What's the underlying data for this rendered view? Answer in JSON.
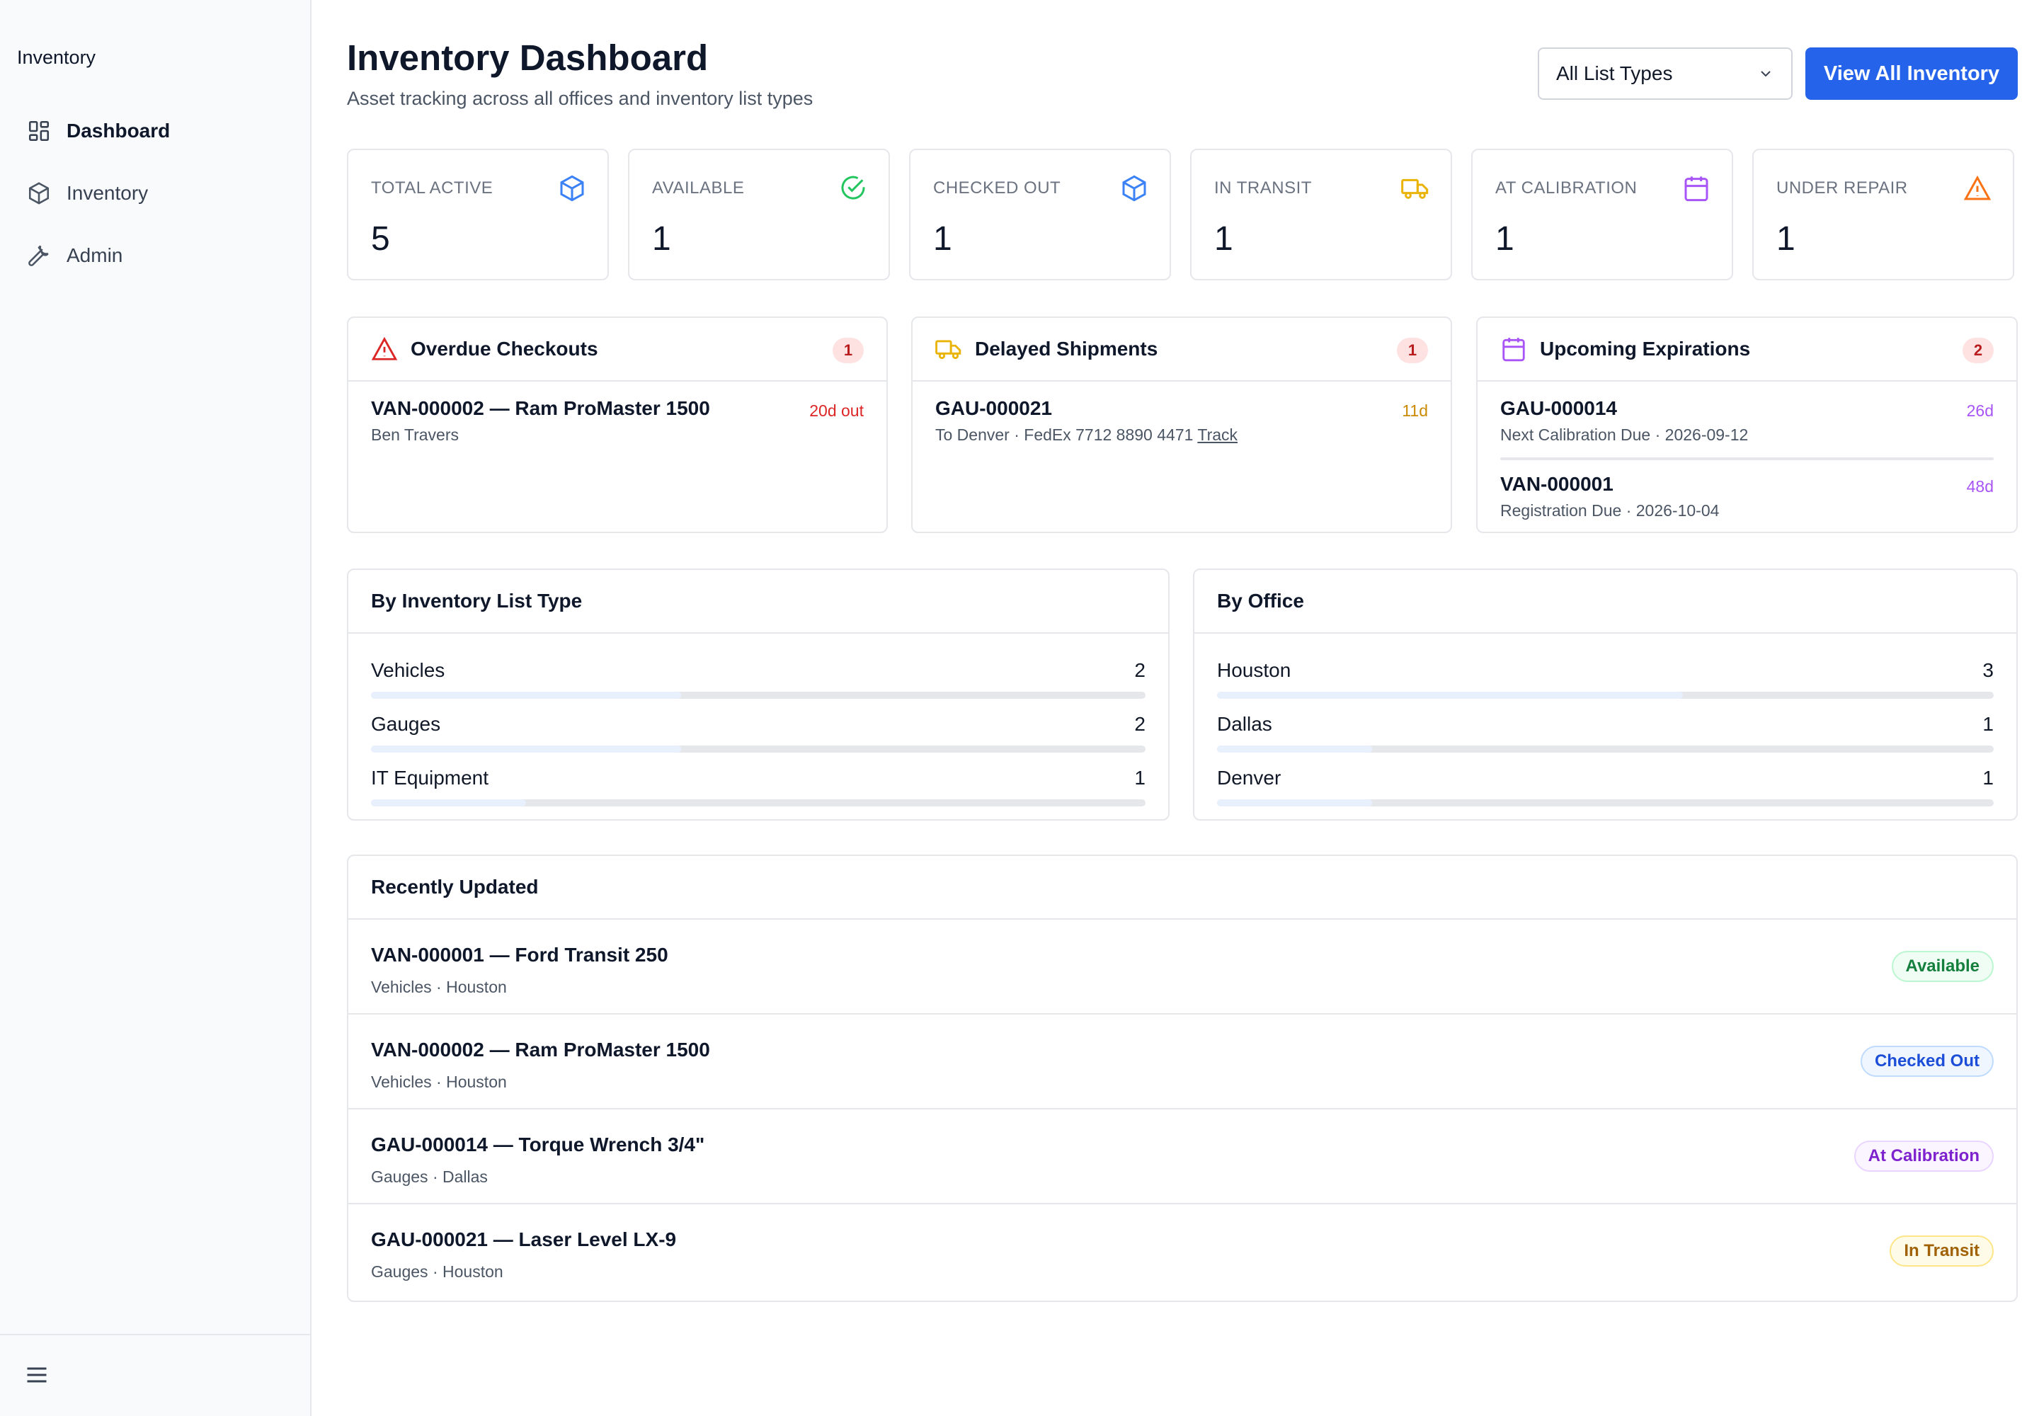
{
  "sidebar": {
    "brand": "Inventory",
    "items": [
      {
        "label": "Dashboard",
        "icon": "grid-icon"
      },
      {
        "label": "Inventory",
        "icon": "box-icon"
      },
      {
        "label": "Admin",
        "icon": "wrench-icon"
      }
    ]
  },
  "header": {
    "title": "Inventory Dashboard",
    "subtitle": "Asset tracking across all offices and inventory list types",
    "filter_value": "All List Types",
    "view_all_label": "View All Inventory"
  },
  "stats": [
    {
      "label": "TOTAL ACTIVE",
      "value": "5",
      "icon": "box-icon",
      "color": "#3b82f6"
    },
    {
      "label": "AVAILABLE",
      "value": "1",
      "icon": "check-circle-icon",
      "color": "#22c55e"
    },
    {
      "label": "CHECKED OUT",
      "value": "1",
      "icon": "box-icon",
      "color": "#3b82f6"
    },
    {
      "label": "IN TRANSIT",
      "value": "1",
      "icon": "truck-icon",
      "color": "#eab308"
    },
    {
      "label": "AT CALIBRATION",
      "value": "1",
      "icon": "calendar-icon",
      "color": "#a855f7"
    },
    {
      "label": "UNDER REPAIR",
      "value": "1",
      "icon": "warning-icon",
      "color": "#f97316"
    }
  ],
  "alerts": {
    "overdue": {
      "title": "Overdue Checkouts",
      "count": "1",
      "items": [
        {
          "title": "VAN-000002 — Ram ProMaster 1500",
          "sub": "Ben Travers",
          "right": "20d out"
        }
      ]
    },
    "delayed": {
      "title": "Delayed Shipments",
      "count": "1",
      "items": [
        {
          "title": "GAU-000021",
          "sub": "To Denver · FedEx 7712 8890 4471",
          "link": "Track",
          "right": "11d"
        }
      ]
    },
    "expirations": {
      "title": "Upcoming Expirations",
      "count": "2",
      "items": [
        {
          "title": "GAU-000014",
          "sub": "Next Calibration Due · 2026-09-12",
          "right": "26d"
        },
        {
          "title": "VAN-000001",
          "sub": "Registration Due · 2026-10-04",
          "right": "48d"
        }
      ]
    }
  },
  "by_list_type": {
    "title": "By Inventory List Type",
    "rows": [
      {
        "label": "Vehicles",
        "count": "2",
        "fraction": 0.4
      },
      {
        "label": "Gauges",
        "count": "2",
        "fraction": 0.4
      },
      {
        "label": "IT Equipment",
        "count": "1",
        "fraction": 0.2
      }
    ]
  },
  "by_office": {
    "title": "By Office",
    "rows": [
      {
        "label": "Houston",
        "count": "3",
        "fraction": 0.6
      },
      {
        "label": "Dallas",
        "count": "1",
        "fraction": 0.2
      },
      {
        "label": "Denver",
        "count": "1",
        "fraction": 0.2
      }
    ]
  },
  "recent": {
    "title": "Recently Updated",
    "rows": [
      {
        "title": "VAN-000001 — Ford Transit 250",
        "sub": "Vehicles · Houston",
        "status": "Available",
        "fg": "#15803d",
        "bg": "#f0fdf4",
        "border": "#bbf7d0"
      },
      {
        "title": "VAN-000002 — Ram ProMaster 1500",
        "sub": "Vehicles · Houston",
        "status": "Checked Out",
        "fg": "#1d4ed8",
        "bg": "#eff6ff",
        "border": "#bfdbfe"
      },
      {
        "title": "GAU-000014 — Torque Wrench 3/4\"",
        "sub": "Gauges · Dallas",
        "status": "At Calibration",
        "fg": "#7e22ce",
        "bg": "#faf5ff",
        "border": "#e9d5ff"
      },
      {
        "title": "GAU-000021 — Laser Level LX-9",
        "sub": "Gauges · Houston",
        "status": "In Transit",
        "fg": "#a16207",
        "bg": "#fefce8",
        "border": "#fde68a"
      }
    ]
  }
}
